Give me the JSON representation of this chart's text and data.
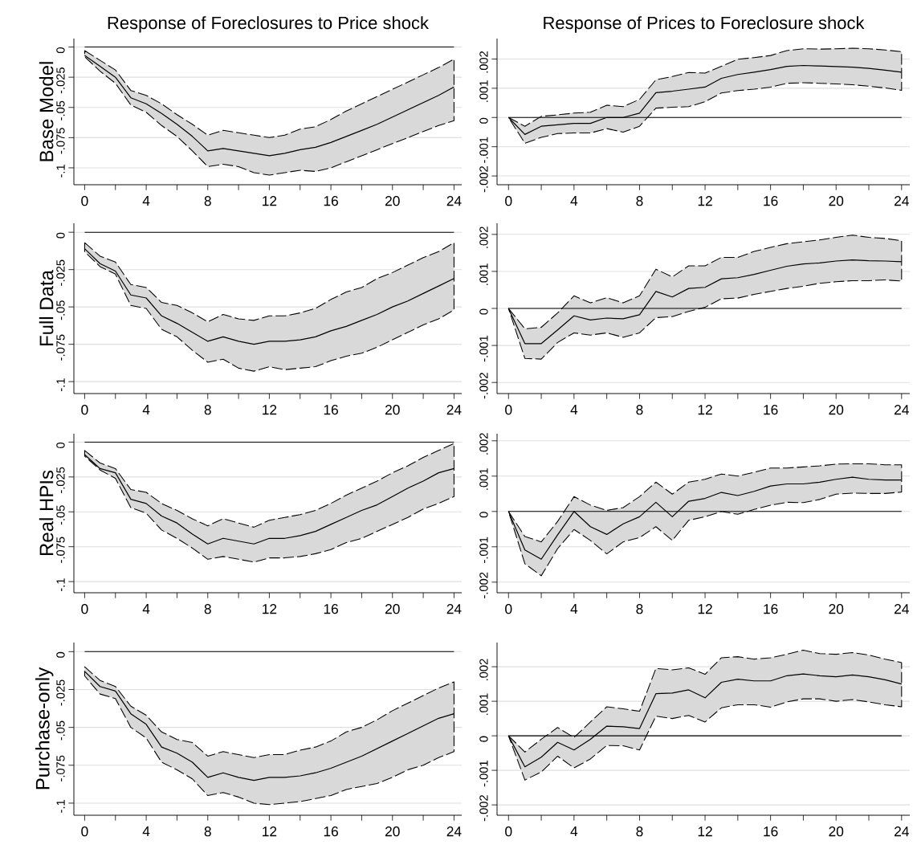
{
  "chart_data": [
    {
      "type": "line",
      "title": "Response of Foreclosures to Price shock",
      "ylabel": "Base Model",
      "x": [
        0,
        1,
        2,
        3,
        4,
        5,
        6,
        7,
        8,
        9,
        10,
        11,
        12,
        13,
        14,
        15,
        16,
        17,
        18,
        19,
        20,
        21,
        22,
        23,
        24
      ],
      "xlim": [
        -0.7,
        24.5
      ],
      "ylim": [
        -0.114,
        0.007
      ],
      "xticks": [
        0,
        {
          "value": 2,
          "label": null
        },
        4,
        {
          "value": 6,
          "label": null
        },
        8,
        {
          "value": 10,
          "label": null
        },
        12,
        {
          "value": 14,
          "label": null
        },
        16,
        {
          "value": 18,
          "label": null
        },
        20,
        {
          "value": 22,
          "label": null
        },
        24
      ],
      "yticks": [
        {
          "value": -0.1,
          "label": "-.1"
        },
        {
          "value": -0.075,
          "label": "-.075"
        },
        {
          "value": -0.05,
          "label": "-.05"
        },
        {
          "value": -0.025,
          "label": "-.025"
        },
        0
      ],
      "grid": "y",
      "ref_lines": [
        {
          "axis": "y",
          "value": 0
        }
      ],
      "series": [
        {
          "color": "#000000",
          "line_style": "solid",
          "values": [
            -0.007,
            -0.016,
            -0.025,
            -0.042,
            -0.047,
            -0.055,
            -0.064,
            -0.074,
            -0.086,
            -0.084,
            -0.086,
            -0.088,
            -0.09,
            -0.088,
            -0.085,
            -0.083,
            -0.079,
            -0.074,
            -0.069,
            -0.064,
            -0.058,
            -0.052,
            -0.046,
            -0.04,
            -0.033
          ],
          "upper": [
            -0.003,
            -0.011,
            -0.019,
            -0.036,
            -0.04,
            -0.047,
            -0.056,
            -0.064,
            -0.073,
            -0.069,
            -0.071,
            -0.073,
            -0.075,
            -0.073,
            -0.068,
            -0.066,
            -0.06,
            -0.053,
            -0.047,
            -0.041,
            -0.035,
            -0.029,
            -0.023,
            -0.017,
            -0.01
          ],
          "lower": [
            -0.008,
            -0.02,
            -0.03,
            -0.048,
            -0.054,
            -0.065,
            -0.074,
            -0.086,
            -0.099,
            -0.097,
            -0.099,
            -0.104,
            -0.106,
            -0.104,
            -0.102,
            -0.103,
            -0.1,
            -0.095,
            -0.09,
            -0.085,
            -0.08,
            -0.075,
            -0.07,
            -0.065,
            -0.061
          ]
        }
      ]
    },
    {
      "type": "line",
      "title": "Response of Prices to Foreclosure shock",
      "x": [
        0,
        1,
        2,
        3,
        4,
        5,
        6,
        7,
        8,
        9,
        10,
        11,
        12,
        13,
        14,
        15,
        16,
        17,
        18,
        19,
        20,
        21,
        22,
        23,
        24
      ],
      "xlim": [
        -0.7,
        24.5
      ],
      "ylim": [
        -0.0023,
        0.0027
      ],
      "xticks": [
        0,
        {
          "value": 2,
          "label": null
        },
        4,
        {
          "value": 6,
          "label": null
        },
        8,
        {
          "value": 10,
          "label": null
        },
        12,
        {
          "value": 14,
          "label": null
        },
        16,
        {
          "value": 18,
          "label": null
        },
        20,
        {
          "value": 22,
          "label": null
        },
        24
      ],
      "yticks": [
        {
          "value": -0.002,
          "label": "-.002"
        },
        {
          "value": -0.001,
          "label": "-.001"
        },
        0,
        {
          "value": 0.001,
          "label": ".001"
        },
        {
          "value": 0.002,
          "label": ".002"
        }
      ],
      "grid": "y",
      "ref_lines": [
        {
          "axis": "y",
          "value": 0
        }
      ],
      "series": [
        {
          "color": "#000000",
          "line_style": "solid",
          "values": [
            0,
            -0.00058,
            -0.0003,
            -0.00025,
            -0.0002,
            -0.0002,
            0,
            0,
            0.00015,
            0.00085,
            0.0009,
            0.00097,
            0.00104,
            0.00134,
            0.00147,
            0.00155,
            0.00164,
            0.00175,
            0.00178,
            0.00176,
            0.00174,
            0.00172,
            0.00168,
            0.00162,
            0.00155
          ],
          "upper": [
            0,
            -0.0003,
            4e-05,
            9e-05,
            0.00015,
            0.00018,
            0.00042,
            0.00037,
            0.00062,
            0.00129,
            0.0014,
            0.00154,
            0.00152,
            0.00175,
            0.00199,
            0.00205,
            0.00212,
            0.00229,
            0.00235,
            0.00234,
            0.00235,
            0.00237,
            0.00235,
            0.00231,
            0.00225
          ],
          "lower": [
            0,
            -0.00088,
            -0.00068,
            -0.00055,
            -0.00053,
            -0.00053,
            -0.00038,
            -0.0005,
            -0.0003,
            0.00032,
            0.00035,
            0.00037,
            0.00054,
            0.00084,
            0.00092,
            0.00097,
            0.00104,
            0.00117,
            0.00119,
            0.00117,
            0.00115,
            0.00112,
            0.00107,
            0.00101,
            0.00093
          ]
        }
      ]
    },
    {
      "type": "line",
      "ylabel": "Full Data",
      "x": [
        0,
        1,
        2,
        3,
        4,
        5,
        6,
        7,
        8,
        9,
        10,
        11,
        12,
        13,
        14,
        15,
        16,
        17,
        18,
        19,
        20,
        21,
        22,
        23,
        24
      ],
      "xlim": [
        -0.7,
        24.5
      ],
      "ylim": [
        -0.108,
        0.006
      ],
      "xticks": [
        0,
        {
          "value": 2,
          "label": null
        },
        4,
        {
          "value": 6,
          "label": null
        },
        8,
        {
          "value": 10,
          "label": null
        },
        12,
        {
          "value": 14,
          "label": null
        },
        16,
        {
          "value": 18,
          "label": null
        },
        20,
        {
          "value": 22,
          "label": null
        },
        24
      ],
      "yticks": [
        {
          "value": -0.1,
          "label": "-.1"
        },
        {
          "value": -0.075,
          "label": "-.075"
        },
        {
          "value": -0.05,
          "label": "-.05"
        },
        {
          "value": -0.025,
          "label": "-.025"
        },
        0
      ],
      "grid": "y",
      "ref_lines": [
        {
          "axis": "y",
          "value": 0
        }
      ],
      "series": [
        {
          "color": "#000000",
          "line_style": "solid",
          "values": [
            -0.011,
            -0.021,
            -0.026,
            -0.042,
            -0.044,
            -0.056,
            -0.061,
            -0.067,
            -0.073,
            -0.07,
            -0.073,
            -0.075,
            -0.073,
            -0.073,
            -0.072,
            -0.07,
            -0.066,
            -0.063,
            -0.059,
            -0.055,
            -0.05,
            -0.046,
            -0.041,
            -0.036,
            -0.031
          ],
          "upper": [
            -0.007,
            -0.016,
            -0.02,
            -0.035,
            -0.037,
            -0.047,
            -0.049,
            -0.054,
            -0.06,
            -0.055,
            -0.058,
            -0.059,
            -0.056,
            -0.056,
            -0.054,
            -0.051,
            -0.045,
            -0.04,
            -0.037,
            -0.031,
            -0.027,
            -0.022,
            -0.017,
            -0.013,
            -0.007
          ],
          "lower": [
            -0.013,
            -0.023,
            -0.028,
            -0.049,
            -0.051,
            -0.065,
            -0.07,
            -0.079,
            -0.087,
            -0.085,
            -0.091,
            -0.093,
            -0.09,
            -0.092,
            -0.091,
            -0.09,
            -0.086,
            -0.083,
            -0.081,
            -0.077,
            -0.072,
            -0.067,
            -0.062,
            -0.058,
            -0.052
          ]
        }
      ]
    },
    {
      "type": "line",
      "x": [
        0,
        1,
        2,
        3,
        4,
        5,
        6,
        7,
        8,
        9,
        10,
        11,
        12,
        13,
        14,
        15,
        16,
        17,
        18,
        19,
        20,
        21,
        22,
        23,
        24
      ],
      "xlim": [
        -0.7,
        24.5
      ],
      "ylim": [
        -0.0023,
        0.0023
      ],
      "xticks": [
        0,
        {
          "value": 2,
          "label": null
        },
        4,
        {
          "value": 6,
          "label": null
        },
        8,
        {
          "value": 10,
          "label": null
        },
        12,
        {
          "value": 14,
          "label": null
        },
        16,
        {
          "value": 18,
          "label": null
        },
        20,
        {
          "value": 22,
          "label": null
        },
        24
      ],
      "yticks": [
        {
          "value": -0.002,
          "label": "-.002"
        },
        {
          "value": -0.001,
          "label": "-.001"
        },
        0,
        {
          "value": 0.001,
          "label": ".001"
        },
        {
          "value": 0.002,
          "label": ".002"
        }
      ],
      "grid": "y",
      "ref_lines": [
        {
          "axis": "y",
          "value": 0
        }
      ],
      "series": [
        {
          "color": "#000000",
          "line_style": "solid",
          "values": [
            0,
            -0.00095,
            -0.00095,
            -0.00058,
            -0.0002,
            -0.00031,
            -0.00026,
            -0.00028,
            -0.00017,
            0.00046,
            0.00031,
            0.00054,
            0.00057,
            0.0008,
            0.00083,
            0.00092,
            0.00103,
            0.00114,
            0.0012,
            0.00123,
            0.00128,
            0.00131,
            0.00129,
            0.00128,
            0.00126
          ],
          "upper": [
            0,
            -0.00055,
            -0.00051,
            -0.00012,
            0.00034,
            0.00015,
            0.00029,
            0.00015,
            0.00034,
            0.00106,
            0.00085,
            0.00115,
            0.00115,
            0.00138,
            0.00138,
            0.00154,
            0.00165,
            0.00175,
            0.0018,
            0.00185,
            0.00192,
            0.00198,
            0.00192,
            0.00189,
            0.00183
          ],
          "lower": [
            0,
            -0.00135,
            -0.00137,
            -0.00092,
            -0.00066,
            -0.00072,
            -0.00066,
            -0.00078,
            -0.00066,
            -0.00025,
            -0.00022,
            -8e-05,
            3e-05,
            0.00026,
            0.00028,
            0.00038,
            0.00046,
            0.00054,
            0.0006,
            0.00068,
            0.00072,
            0.00075,
            0.00075,
            0.00077,
            0.00074
          ]
        }
      ]
    },
    {
      "type": "line",
      "ylabel": "Real HPIs",
      "x": [
        0,
        1,
        2,
        3,
        4,
        5,
        6,
        7,
        8,
        9,
        10,
        11,
        12,
        13,
        14,
        15,
        16,
        17,
        18,
        19,
        20,
        21,
        22,
        23,
        24
      ],
      "xlim": [
        -0.7,
        24.5
      ],
      "ylim": [
        -0.108,
        0.006
      ],
      "xticks": [
        0,
        {
          "value": 2,
          "label": null
        },
        4,
        {
          "value": 6,
          "label": null
        },
        8,
        {
          "value": 10,
          "label": null
        },
        12,
        {
          "value": 14,
          "label": null
        },
        16,
        {
          "value": 18,
          "label": null
        },
        20,
        {
          "value": 22,
          "label": null
        },
        24
      ],
      "yticks": [
        {
          "value": -0.1,
          "label": "-.1"
        },
        {
          "value": -0.075,
          "label": "-.075"
        },
        {
          "value": -0.05,
          "label": "-.05"
        },
        {
          "value": -0.025,
          "label": "-.025"
        },
        0
      ],
      "grid": "y",
      "ref_lines": [
        {
          "axis": "y",
          "value": 0
        }
      ],
      "series": [
        {
          "color": "#000000",
          "line_style": "solid",
          "values": [
            -0.009,
            -0.019,
            -0.022,
            -0.041,
            -0.044,
            -0.053,
            -0.058,
            -0.066,
            -0.073,
            -0.069,
            -0.071,
            -0.073,
            -0.069,
            -0.069,
            -0.067,
            -0.064,
            -0.059,
            -0.054,
            -0.049,
            -0.045,
            -0.039,
            -0.033,
            -0.028,
            -0.022,
            -0.019
          ],
          "upper": [
            -0.006,
            -0.015,
            -0.019,
            -0.034,
            -0.036,
            -0.044,
            -0.049,
            -0.055,
            -0.06,
            -0.055,
            -0.058,
            -0.061,
            -0.056,
            -0.054,
            -0.052,
            -0.049,
            -0.044,
            -0.038,
            -0.033,
            -0.028,
            -0.022,
            -0.017,
            -0.011,
            -0.006,
            -0.001
          ],
          "lower": [
            -0.01,
            -0.02,
            -0.026,
            -0.047,
            -0.051,
            -0.063,
            -0.069,
            -0.076,
            -0.084,
            -0.082,
            -0.084,
            -0.086,
            -0.083,
            -0.083,
            -0.082,
            -0.08,
            -0.077,
            -0.072,
            -0.069,
            -0.064,
            -0.059,
            -0.054,
            -0.048,
            -0.044,
            -0.039
          ]
        }
      ]
    },
    {
      "type": "line",
      "x": [
        0,
        1,
        2,
        3,
        4,
        5,
        6,
        7,
        8,
        9,
        10,
        11,
        12,
        13,
        14,
        15,
        16,
        17,
        18,
        19,
        20,
        21,
        22,
        23,
        24
      ],
      "xlim": [
        -0.7,
        24.5
      ],
      "ylim": [
        -0.0023,
        0.0022
      ],
      "xticks": [
        0,
        {
          "value": 2,
          "label": null
        },
        4,
        {
          "value": 6,
          "label": null
        },
        8,
        {
          "value": 10,
          "label": null
        },
        12,
        {
          "value": 14,
          "label": null
        },
        16,
        {
          "value": 18,
          "label": null
        },
        20,
        {
          "value": 22,
          "label": null
        },
        24
      ],
      "yticks": [
        {
          "value": -0.002,
          "label": "-.002"
        },
        {
          "value": -0.001,
          "label": "-.001"
        },
        0,
        {
          "value": 0.001,
          "label": ".001"
        },
        {
          "value": 0.002,
          "label": ".002"
        }
      ],
      "grid": "y",
      "ref_lines": [
        {
          "axis": "y",
          "value": 0
        }
      ],
      "series": [
        {
          "color": "#000000",
          "line_style": "solid",
          "values": [
            0,
            -0.00109,
            -0.00135,
            -0.00066,
            0,
            -0.00043,
            -0.00065,
            -0.00035,
            -0.00015,
            0.00026,
            -0.00015,
            0.00029,
            0.00037,
            0.00054,
            0.00045,
            0.00057,
            0.00072,
            0.00078,
            0.00078,
            0.00083,
            0.00091,
            0.00097,
            0.00091,
            0.00089,
            0.00089
          ],
          "upper": [
            0,
            -0.00071,
            -0.00086,
            -0.00028,
            0.00042,
            0.00018,
            3e-05,
            0.00011,
            0.00042,
            0.00083,
            0.00049,
            0.00083,
            0.00091,
            0.00106,
            0.001,
            0.00111,
            0.00123,
            0.00123,
            0.00126,
            0.00129,
            0.00134,
            0.00135,
            0.00135,
            0.00132,
            0.00132
          ],
          "lower": [
            0,
            -0.00148,
            -0.00182,
            -0.00105,
            -0.00051,
            -0.00082,
            -0.0012,
            -0.00086,
            -0.00074,
            -0.00043,
            -0.00082,
            -0.00025,
            -0.00015,
            0,
            -8e-05,
            6e-05,
            0.00018,
            0.00026,
            0.00025,
            0.00034,
            0.00049,
            0.00052,
            0.00051,
            0.00051,
            0.00055
          ]
        }
      ]
    },
    {
      "type": "line",
      "ylabel": "Purchase-only",
      "x": [
        0,
        1,
        2,
        3,
        4,
        5,
        6,
        7,
        8,
        9,
        10,
        11,
        12,
        13,
        14,
        15,
        16,
        17,
        18,
        19,
        20,
        21,
        22,
        23,
        24
      ],
      "xlim": [
        -0.7,
        24.5
      ],
      "ylim": [
        -0.108,
        0.006
      ],
      "xticks": [
        0,
        {
          "value": 2,
          "label": null
        },
        4,
        {
          "value": 6,
          "label": null
        },
        8,
        {
          "value": 10,
          "label": null
        },
        12,
        {
          "value": 14,
          "label": null
        },
        16,
        {
          "value": 18,
          "label": null
        },
        20,
        {
          "value": 22,
          "label": null
        },
        24
      ],
      "yticks": [
        {
          "value": -0.1,
          "label": "-.1"
        },
        {
          "value": -0.075,
          "label": "-.075"
        },
        {
          "value": -0.05,
          "label": "-.05"
        },
        {
          "value": -0.025,
          "label": "-.025"
        },
        0
      ],
      "grid": "y",
      "ref_lines": [
        {
          "axis": "y",
          "value": 0
        }
      ],
      "series": [
        {
          "color": "#000000",
          "line_style": "solid",
          "values": [
            -0.013,
            -0.023,
            -0.026,
            -0.041,
            -0.048,
            -0.063,
            -0.067,
            -0.073,
            -0.083,
            -0.08,
            -0.083,
            -0.085,
            -0.083,
            -0.083,
            -0.082,
            -0.08,
            -0.077,
            -0.073,
            -0.069,
            -0.064,
            -0.059,
            -0.054,
            -0.049,
            -0.044,
            -0.041
          ],
          "upper": [
            -0.01,
            -0.019,
            -0.023,
            -0.036,
            -0.042,
            -0.053,
            -0.058,
            -0.06,
            -0.069,
            -0.066,
            -0.068,
            -0.07,
            -0.068,
            -0.068,
            -0.065,
            -0.063,
            -0.059,
            -0.053,
            -0.05,
            -0.045,
            -0.039,
            -0.034,
            -0.029,
            -0.024,
            -0.02
          ],
          "lower": [
            -0.016,
            -0.028,
            -0.031,
            -0.05,
            -0.057,
            -0.073,
            -0.078,
            -0.084,
            -0.095,
            -0.093,
            -0.096,
            -0.1,
            -0.101,
            -0.1,
            -0.099,
            -0.097,
            -0.095,
            -0.091,
            -0.089,
            -0.087,
            -0.083,
            -0.078,
            -0.075,
            -0.07,
            -0.066
          ]
        }
      ]
    },
    {
      "type": "line",
      "x": [
        0,
        1,
        2,
        3,
        4,
        5,
        6,
        7,
        8,
        9,
        10,
        11,
        12,
        13,
        14,
        15,
        16,
        17,
        18,
        19,
        20,
        21,
        22,
        23,
        24
      ],
      "xlim": [
        -0.7,
        24.5
      ],
      "ylim": [
        -0.0023,
        0.0027
      ],
      "xticks": [
        0,
        {
          "value": 2,
          "label": null
        },
        4,
        {
          "value": 6,
          "label": null
        },
        8,
        {
          "value": 10,
          "label": null
        },
        12,
        {
          "value": 14,
          "label": null
        },
        16,
        {
          "value": 18,
          "label": null
        },
        20,
        {
          "value": 22,
          "label": null
        },
        24
      ],
      "yticks": [
        {
          "value": -0.002,
          "label": "-.002"
        },
        {
          "value": -0.001,
          "label": "-.001"
        },
        0,
        {
          "value": 0.001,
          "label": ".001"
        },
        {
          "value": 0.002,
          "label": ".002"
        }
      ],
      "grid": "y",
      "ref_lines": [
        {
          "axis": "y",
          "value": 0
        }
      ],
      "series": [
        {
          "color": "#000000",
          "line_style": "solid",
          "values": [
            0,
            -0.0009,
            -0.00062,
            -0.00019,
            -0.00041,
            -0.0001,
            0.00028,
            0.00026,
            0.00021,
            0.00122,
            0.00124,
            0.00133,
            0.0011,
            0.00155,
            0.00164,
            0.00159,
            0.00159,
            0.00174,
            0.00179,
            0.00174,
            0.00171,
            0.00176,
            0.00171,
            0.00162,
            0.0015
          ],
          "upper": [
            0,
            -0.00047,
            -0.0001,
            0.00024,
            -5e-05,
            0.0004,
            0.00084,
            0.00078,
            0.00071,
            0.00195,
            0.00191,
            0.00197,
            0.00178,
            0.00226,
            0.00229,
            0.00222,
            0.00226,
            0.00236,
            0.00248,
            0.00238,
            0.00236,
            0.00241,
            0.00234,
            0.00222,
            0.00212
          ],
          "lower": [
            0,
            -0.00128,
            -0.00105,
            -0.00059,
            -0.00093,
            -0.00067,
            -0.00028,
            -0.00029,
            -0.00041,
            0.00057,
            0.0005,
            0.00059,
            0.0004,
            0.00081,
            0.0009,
            0.0009,
            0.00083,
            0.00098,
            0.00107,
            0.00107,
            0.001,
            0.00105,
            0.00098,
            0.0009,
            0.00084
          ]
        }
      ]
    }
  ]
}
